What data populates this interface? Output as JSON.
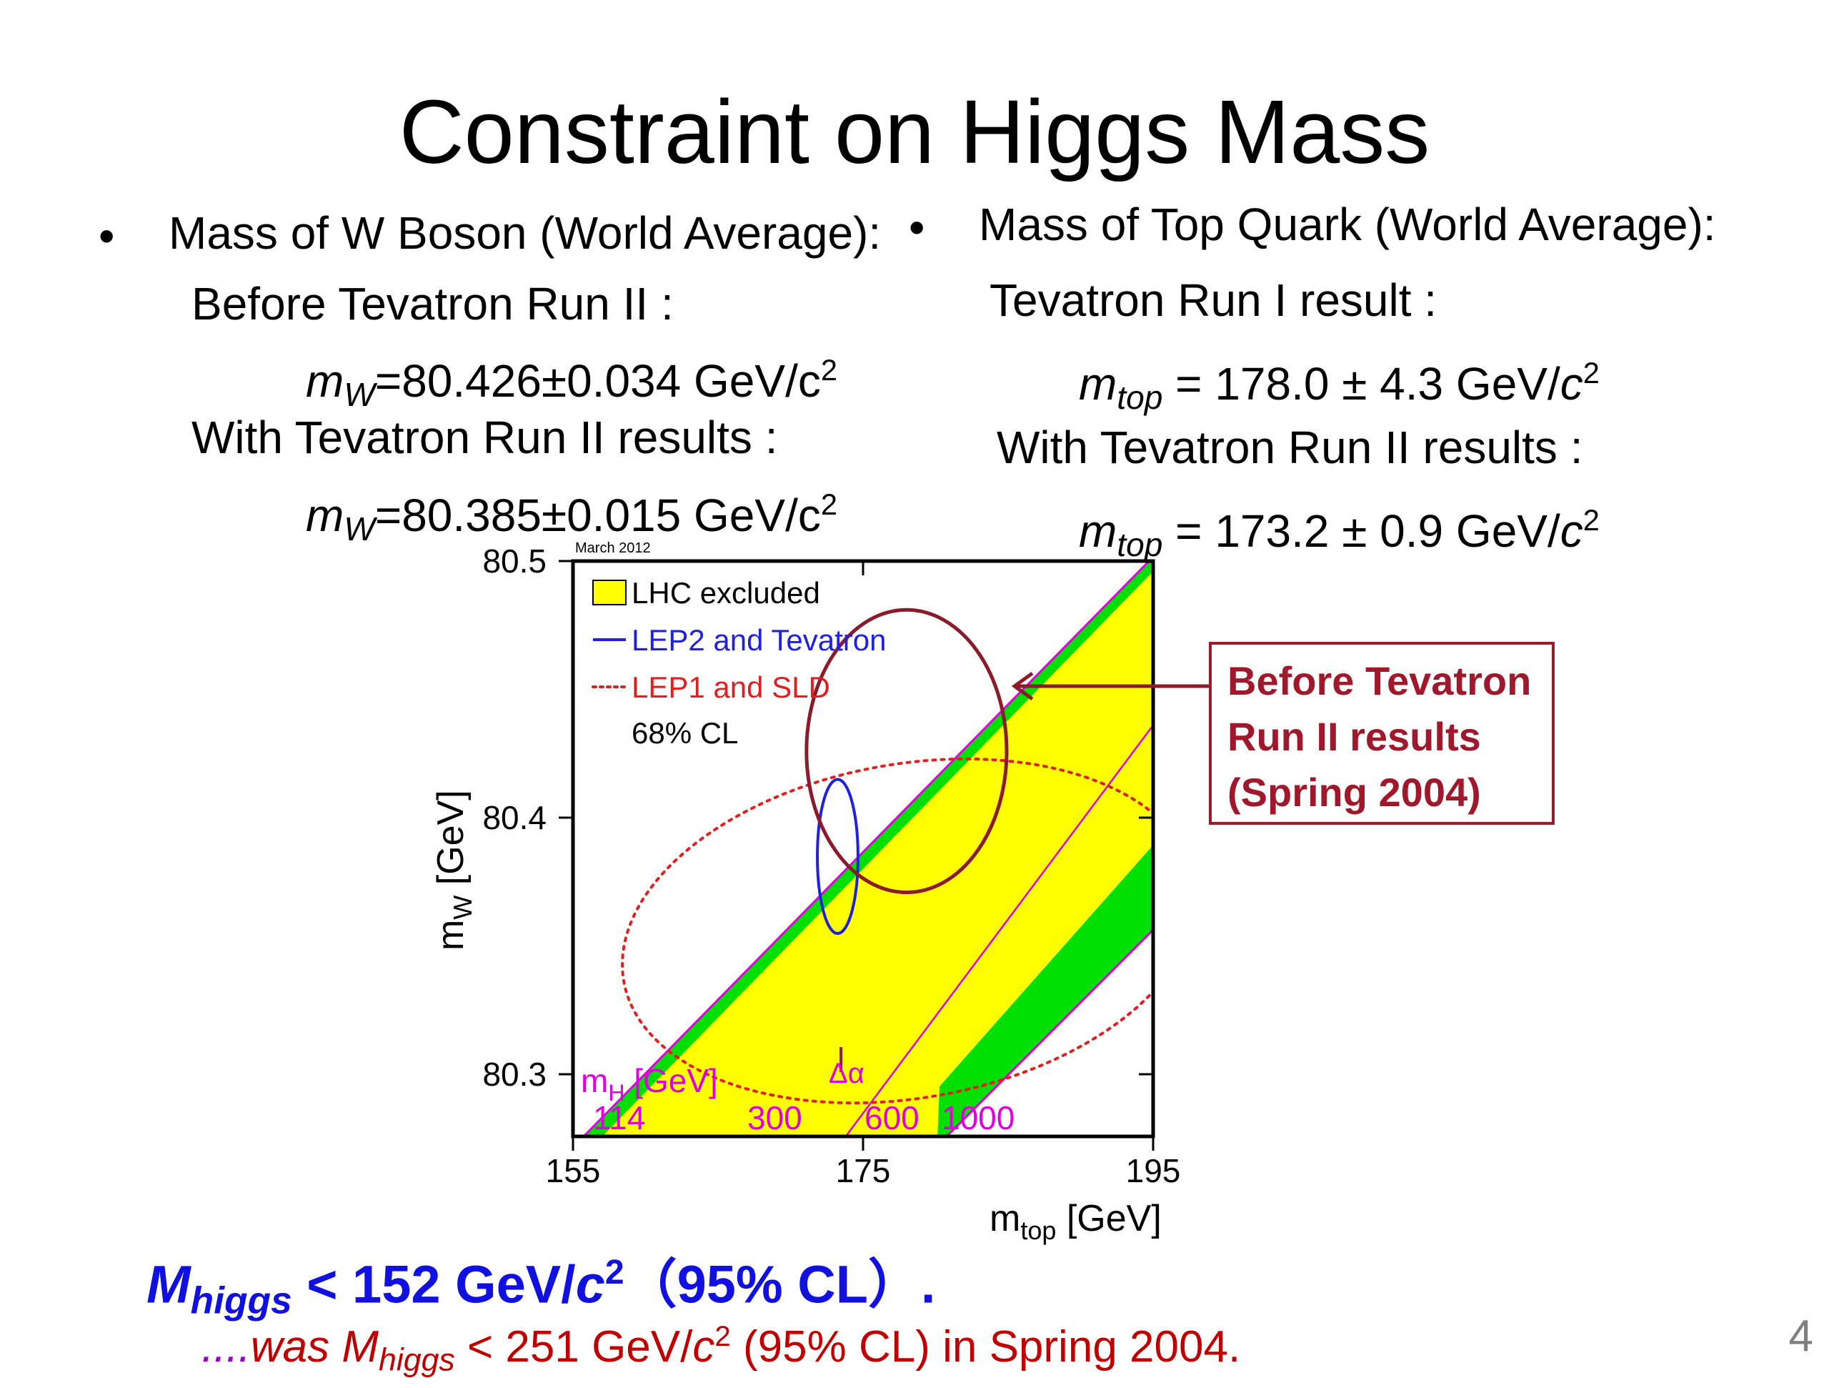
{
  "title": "Constraint on Higgs Mass",
  "left": {
    "bullet": "•",
    "heading": "Mass of W Boson (World Average):",
    "before_label": "Before Tevatron Run II :",
    "mw_symbol": "m",
    "mw_sub": "W",
    "mw_before": "=80.426±0.034 GeV/c",
    "with_label": "With Tevatron Run II results :",
    "mw_with": "=80.385±0.015 GeV/c",
    "sup": "2"
  },
  "right": {
    "bullet": "•",
    "heading": "Mass of Top Quark (World Average):",
    "run1_label": "Tevatron Run I result :",
    "mtop_symbol": "m",
    "mtop_sub": "top",
    "mtop_run1": " = 178.0 ± 4.3 GeV/",
    "c": "c",
    "with_label": "With Tevatron Run II results :",
    "mtop_with": " = 173.2 ± 0.9 GeV/",
    "sup": "2"
  },
  "callout": {
    "line1": "Before Tevatron",
    "line2": "Run II results",
    "line3": "(Spring 2004)"
  },
  "conclusion": {
    "symbol": "M",
    "sub": "higgs",
    "text": " < 152 GeV/",
    "c": "c",
    "sup": "2",
    "tail": "（95% CL）."
  },
  "was": {
    "dots": "....",
    "prefix": "was ",
    "symbol": "M",
    "sub": "higgs",
    "text": " < 251 GeV/",
    "c": "c",
    "sup": "2",
    "tail": " (95% CL) in Spring 2004."
  },
  "page_number": "4",
  "chart_data": {
    "type": "scatter",
    "date_label": "March 2012",
    "xlabel_main": "m",
    "xlabel_sub": "top",
    "xlabel_unit": " [GeV]",
    "ylabel_main": "m",
    "ylabel_sub": "W",
    "ylabel_unit": "  [GeV]",
    "xlim": [
      155,
      195
    ],
    "ylim": [
      80.276,
      80.5
    ],
    "x_ticks": [
      "155",
      "175",
      "195"
    ],
    "y_ticks": [
      "80.3",
      "80.4",
      "80.5"
    ],
    "legend": {
      "lhc": "LHC excluded",
      "lep2": "LEP2 and Tevatron",
      "lep1": "LEP1 and SLD",
      "cl": "68% CL"
    },
    "higgs_label_main": "m",
    "higgs_label_sub": "H",
    "higgs_label_unit": " [GeV]",
    "higgs_values": [
      "114",
      "300",
      "600",
      "1000"
    ],
    "delta_alpha": "Δα",
    "contours": [
      {
        "name": "LEP2 and Tevatron",
        "center": [
          173.25,
          80.385
        ],
        "semi_axes_data": [
          1.4,
          0.03
        ],
        "color": "#2020e0",
        "style": "solid"
      },
      {
        "name": "LEP1 and SLD",
        "center": [
          178.2,
          80.356
        ],
        "semi_axes_data": [
          20,
          0.065
        ],
        "rotation_deg": -10,
        "color": "#e02020",
        "style": "dotted"
      },
      {
        "name": "Before Tevatron Run II results (Spring 2004)",
        "center": [
          178.0,
          80.426
        ],
        "semi_axes_data": [
          6.9,
          0.055
        ],
        "color": "#8b1a2b",
        "style": "solid"
      }
    ],
    "colors": {
      "lhc_yellow": "#ffff00",
      "band_green": "#00e000",
      "higgs_magenta": "#e000e0",
      "callout_red": "#a0182b",
      "conclusion_blue": "#1010e0",
      "was_red": "#c00000"
    }
  }
}
